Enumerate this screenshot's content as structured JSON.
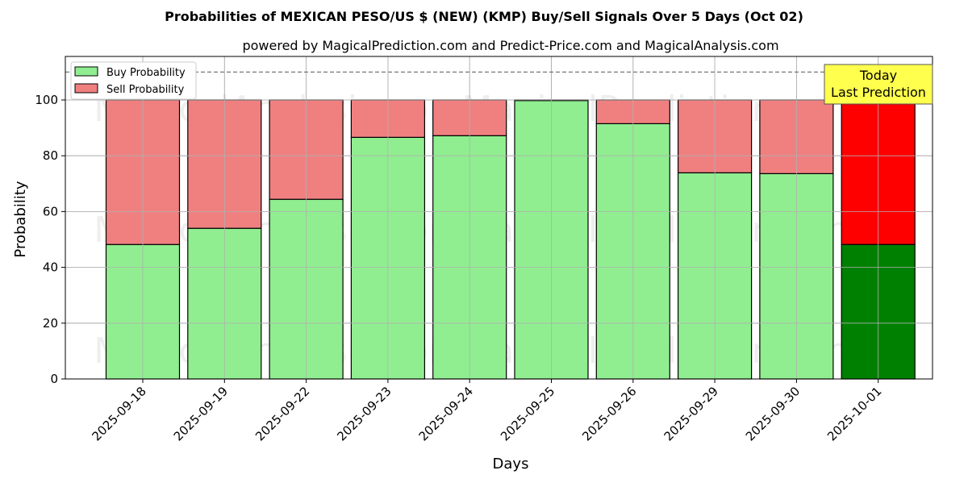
{
  "chart_data": {
    "type": "bar",
    "stacked": true,
    "title": "Probabilities of MEXICAN PESO/US $ (NEW) (KMP) Buy/Sell Signals Over 5 Days (Oct 02)",
    "subtitle": "powered by MagicalPrediction.com and Predict-Price.com and MagicalAnalysis.com",
    "xlabel": "Days",
    "ylabel": "Probability",
    "ylim": [
      0,
      115.6
    ],
    "yticks": [
      0,
      20,
      40,
      60,
      80,
      100
    ],
    "grid": true,
    "categories": [
      "2025-09-18",
      "2025-09-19",
      "2025-09-22",
      "2025-09-23",
      "2025-09-24",
      "2025-09-25",
      "2025-09-26",
      "2025-09-29",
      "2025-09-30",
      "2025-10-01"
    ],
    "series": [
      {
        "name": "Buy Probability",
        "color": "#90ee90",
        "values": [
          48.2,
          54.0,
          64.4,
          86.6,
          87.2,
          99.8,
          91.5,
          73.9,
          73.6,
          48.2
        ]
      },
      {
        "name": "Sell Probability",
        "color": "#f08080",
        "values": [
          51.8,
          46.0,
          35.6,
          13.4,
          12.8,
          0.2,
          8.5,
          26.1,
          26.4,
          51.8
        ]
      }
    ],
    "highlight": {
      "index": 9,
      "buy_color": "#008000",
      "sell_color": "#ff0000"
    },
    "reference_line": 110,
    "legend_placement": "top-left",
    "annotation": {
      "line1": "Today",
      "line2": "Last Prediction",
      "color": "#ffff4d"
    },
    "watermarks": [
      "MagicalAnalysis.com",
      "MagicalPrediction.com"
    ]
  }
}
